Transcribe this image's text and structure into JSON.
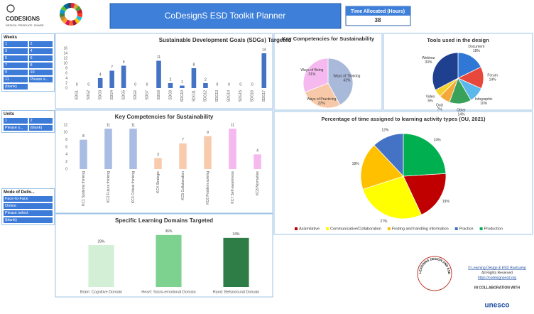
{
  "logo": {
    "name": "CODESIGNS",
    "tagline": "DESIGN. PRODUCE. SHARE"
  },
  "header": {
    "title": "CoDesignS ESD Toolkit Planner"
  },
  "time_allocated": {
    "label": "Time Allocated (Hours)",
    "value": 38
  },
  "slicers": [
    {
      "title": "Weeks",
      "items": [
        "1",
        "2",
        "3",
        "4",
        "5",
        "6",
        "7",
        "8",
        "9",
        "10",
        "11",
        "Please s...",
        "(blank)"
      ]
    },
    {
      "title": "Units",
      "items": [
        "1",
        "2",
        "Please s...",
        "(blank)"
      ]
    },
    {
      "title": "Mode of Deliv...",
      "items": [
        "Face-to-Face",
        "Online",
        "Please select",
        "(blank)"
      ]
    }
  ],
  "chart_data": [
    {
      "type": "bar",
      "title": "Sustainable Development Goals (SDGs) Targeted",
      "categories": [
        "SDG1",
        "SDG2",
        "SDG3",
        "SDG4",
        "SDG5",
        "SDG6",
        "SDG7",
        "SDG8",
        "SDG9",
        "SDG10",
        "SDG11",
        "SDG12",
        "SDG13",
        "SDG14",
        "SDG15",
        "SDG16",
        "SDG17"
      ],
      "values": [
        0,
        0,
        4,
        7,
        9,
        0,
        0,
        11,
        2,
        1,
        8,
        2,
        0,
        0,
        0,
        0,
        14
      ],
      "color": "#4472c4",
      "ylim": [
        0,
        16
      ],
      "yticks": [
        0,
        2,
        4,
        6,
        8,
        10,
        12,
        14,
        16
      ]
    },
    {
      "type": "bar",
      "title": "Key Competencies for Sustainability",
      "categories": [
        "KC1 Systems thinking",
        "KC2 Future thinking",
        "KC3 Critical thinking",
        "KC4 Strategic",
        "KC5 Collaboration",
        "KC6 Problem solving",
        "KC7 Self-awareness",
        "KC8 Normative"
      ],
      "values": [
        8,
        11,
        11,
        3,
        7,
        9,
        11,
        4
      ],
      "colors": [
        "#a9bce3",
        "#a9bce3",
        "#a9bce3",
        "#f8cbad",
        "#f8cbad",
        "#f8cbad",
        "#f5b8ef",
        "#f5b8ef"
      ],
      "ylim": [
        0,
        12
      ],
      "yticks": [
        0,
        2,
        4,
        6,
        8,
        10,
        12
      ]
    },
    {
      "type": "bar",
      "title": "Specific Learning Domains Targeted",
      "categories": [
        "Brain: Cognitive Domain",
        "Heart: Socio-emotional Domain",
        "Hand: Behavioural Domain"
      ],
      "values": [
        29,
        36,
        34
      ],
      "value_labels": [
        "29%",
        "36%",
        "34%"
      ],
      "colors": [
        "#d3f0d6",
        "#7dd290",
        "#2f7d46"
      ]
    },
    {
      "type": "pie",
      "title": "Key Competencies for Sustainability",
      "categories": [
        "Ways of Thinking",
        "Ways of Practicing",
        "Ways of Being"
      ],
      "values": [
        42,
        27,
        31
      ],
      "value_labels": [
        "42%",
        "27%",
        "31%"
      ],
      "colors": [
        "#a9b9da",
        "#f7c9a8",
        "#f5b9f0"
      ]
    },
    {
      "type": "pie",
      "title": "Tools used in the design",
      "categories": [
        "Document",
        "Forum",
        "Infographic",
        "Other",
        "Quiz",
        "Video",
        "Webinar"
      ],
      "values": [
        18,
        14,
        10,
        14,
        7,
        5,
        33
      ],
      "value_labels": [
        "18%",
        "14%",
        "10%",
        "14%",
        "7%",
        "5%",
        "33%"
      ],
      "colors": [
        "#2f78d6",
        "#e8473b",
        "#5cb8ea",
        "#3aa15a",
        "#f4a83a",
        "#f2d22e",
        "#1f3f8f"
      ]
    },
    {
      "type": "pie",
      "title": "Percentage of time assigned to learning activity types (OU, 2021)",
      "categories": [
        "Assimilative",
        "Communicative/Collaboration",
        "Finding and handling information",
        "Practice",
        "Production"
      ],
      "values": [
        19,
        27,
        18,
        12,
        24
      ],
      "value_labels": [
        "19%",
        "27%",
        "18%",
        "12%",
        "24%"
      ],
      "colors": [
        "#c00000",
        "#ffff00",
        "#ffc000",
        "#4472c4",
        "#00b050"
      ],
      "legend": "bottom"
    }
  ],
  "footer": {
    "badge": "LEARNING DESIGN AND ESD BOOTCAMP",
    "copyright": "© Learning Design & ESD Bootcamp",
    "rights": "All Rights Reserved",
    "url": "https://codesignsesd.org",
    "collab": "IN COLLABORATION WITH",
    "partner": "unesco"
  }
}
